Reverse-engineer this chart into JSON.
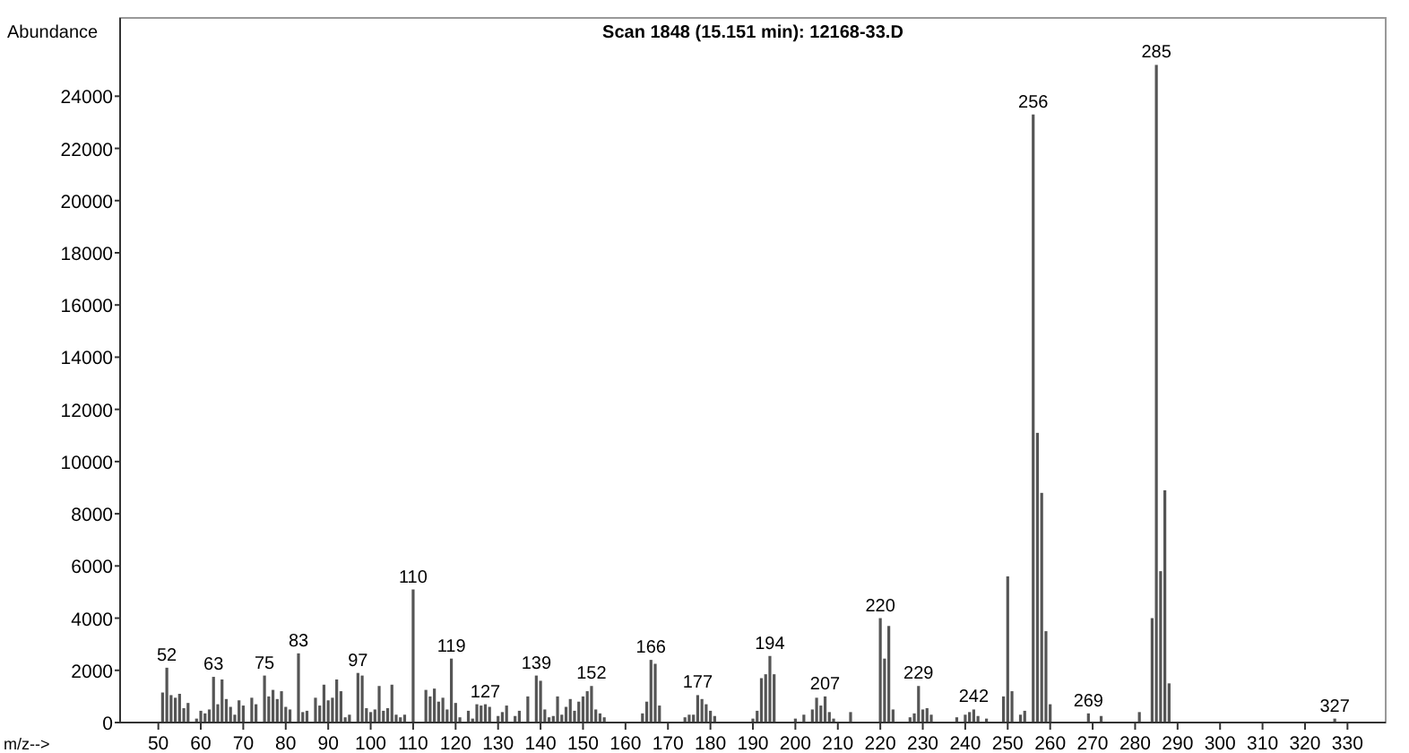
{
  "chart_data": {
    "type": "bar",
    "title": "Scan 1848 (15.151 min): 12168-33.D",
    "xlabel": "m/z-->",
    "ylabel": "Abundance",
    "color": "#555555",
    "x": [
      51,
      52,
      53,
      54,
      55,
      56,
      57,
      59,
      60,
      61,
      62,
      63,
      64,
      65,
      66,
      67,
      68,
      69,
      70,
      72,
      73,
      75,
      76,
      77,
      78,
      79,
      80,
      81,
      83,
      84,
      85,
      87,
      88,
      89,
      90,
      91,
      92,
      93,
      94,
      95,
      97,
      98,
      99,
      100,
      101,
      102,
      103,
      104,
      105,
      106,
      107,
      108,
      110,
      113,
      114,
      115,
      116,
      117,
      118,
      119,
      120,
      121,
      123,
      124,
      125,
      126,
      127,
      128,
      130,
      131,
      132,
      134,
      135,
      137,
      139,
      140,
      141,
      142,
      143,
      144,
      145,
      146,
      147,
      148,
      149,
      150,
      151,
      152,
      153,
      154,
      155,
      164,
      165,
      166,
      167,
      168,
      174,
      175,
      176,
      177,
      178,
      179,
      180,
      181,
      190,
      191,
      192,
      193,
      194,
      195,
      200,
      202,
      204,
      205,
      206,
      207,
      208,
      209,
      213,
      220,
      221,
      222,
      223,
      227,
      228,
      229,
      230,
      231,
      232,
      238,
      240,
      241,
      242,
      243,
      245,
      249,
      250,
      251,
      253,
      254,
      256,
      257,
      258,
      259,
      260,
      269,
      272,
      281,
      284,
      285,
      286,
      287,
      288,
      327
    ],
    "values": [
      1150,
      2100,
      1050,
      950,
      1100,
      550,
      750,
      150,
      450,
      350,
      500,
      1750,
      700,
      1650,
      900,
      600,
      300,
      850,
      650,
      950,
      700,
      1800,
      1000,
      1250,
      900,
      1200,
      600,
      500,
      2650,
      400,
      450,
      950,
      650,
      1450,
      850,
      950,
      1650,
      1200,
      200,
      300,
      1900,
      1800,
      550,
      400,
      500,
      1400,
      450,
      550,
      1450,
      300,
      200,
      300,
      5100,
      1250,
      1000,
      1300,
      800,
      950,
      500,
      2450,
      750,
      200,
      450,
      150,
      700,
      650,
      700,
      600,
      250,
      400,
      650,
      250,
      450,
      1000,
      1800,
      1600,
      500,
      200,
      250,
      1000,
      300,
      600,
      900,
      450,
      800,
      1000,
      1200,
      1400,
      500,
      350,
      200,
      350,
      800,
      2400,
      2250,
      650,
      200,
      300,
      300,
      1050,
      900,
      700,
      450,
      250,
      150,
      450,
      1700,
      1850,
      2550,
      1850,
      150,
      300,
      500,
      950,
      650,
      1000,
      400,
      150,
      400,
      4000,
      2450,
      3700,
      500,
      200,
      350,
      1400,
      500,
      550,
      300,
      200,
      300,
      400,
      500,
      250,
      150,
      1000,
      5600,
      1200,
      300,
      450,
      23300,
      11100,
      8800,
      3500,
      700,
      350,
      250,
      400,
      4000,
      25200,
      5800,
      8900,
      1500,
      150
    ],
    "xlim": [
      41,
      339
    ],
    "xticks": [
      50,
      60,
      70,
      80,
      90,
      100,
      110,
      120,
      130,
      140,
      150,
      160,
      170,
      180,
      190,
      200,
      210,
      220,
      230,
      240,
      250,
      260,
      270,
      280,
      290,
      300,
      310,
      320,
      330
    ],
    "ylim": [
      0,
      27000
    ],
    "yticks": [
      0,
      2000,
      4000,
      6000,
      8000,
      10000,
      12000,
      14000,
      16000,
      18000,
      20000,
      22000,
      24000
    ],
    "annotations": [
      {
        "text": "52",
        "x": 52,
        "y": 2100
      },
      {
        "text": "63",
        "x": 63,
        "y": 1750
      },
      {
        "text": "75",
        "x": 75,
        "y": 1800
      },
      {
        "text": "83",
        "x": 83,
        "y": 2650
      },
      {
        "text": "97",
        "x": 97,
        "y": 1900
      },
      {
        "text": "110",
        "x": 110,
        "y": 5100
      },
      {
        "text": "119",
        "x": 119,
        "y": 2450
      },
      {
        "text": "127",
        "x": 127,
        "y": 700
      },
      {
        "text": "139",
        "x": 139,
        "y": 1800
      },
      {
        "text": "152",
        "x": 152,
        "y": 1400
      },
      {
        "text": "166",
        "x": 166,
        "y": 2400
      },
      {
        "text": "177",
        "x": 177,
        "y": 1050
      },
      {
        "text": "194",
        "x": 194,
        "y": 2550
      },
      {
        "text": "207",
        "x": 207,
        "y": 1000
      },
      {
        "text": "220",
        "x": 220,
        "y": 4000
      },
      {
        "text": "229",
        "x": 229,
        "y": 1400
      },
      {
        "text": "242",
        "x": 242,
        "y": 500
      },
      {
        "text": "256",
        "x": 256,
        "y": 23300
      },
      {
        "text": "269",
        "x": 269,
        "y": 350
      },
      {
        "text": "285",
        "x": 285,
        "y": 25200
      },
      {
        "text": "327",
        "x": 327,
        "y": 150
      }
    ]
  }
}
